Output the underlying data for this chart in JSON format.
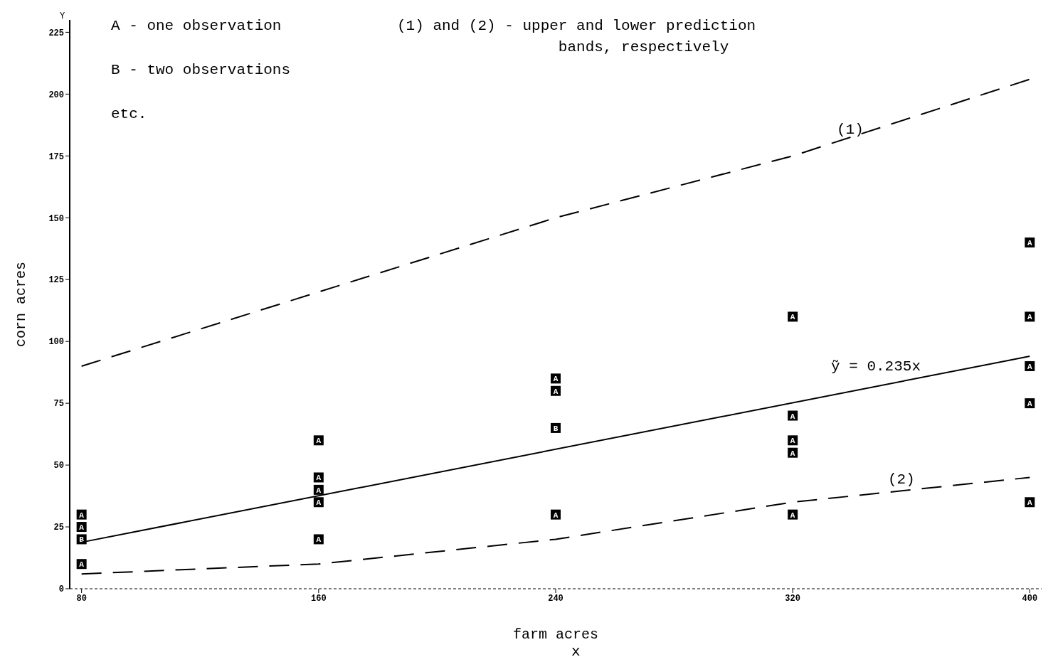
{
  "chart_data": {
    "type": "scatter",
    "xlabel": "farm acres",
    "ylabel": "corn acres",
    "xlim": [
      76,
      404
    ],
    "ylim": [
      0,
      230
    ],
    "xticks": [
      80,
      160,
      240,
      320,
      400
    ],
    "yticks": [
      0,
      25,
      50,
      75,
      100,
      125,
      150,
      175,
      200,
      225
    ],
    "series": [
      {
        "type": "scatter",
        "name": "A",
        "color": "#000000",
        "marker": "square",
        "x": [
          80,
          80,
          80,
          160,
          160,
          160,
          160,
          160,
          240,
          240,
          240,
          320,
          320,
          320,
          320,
          320,
          400,
          400,
          400,
          400,
          400
        ],
        "values": [
          30,
          25,
          10,
          60,
          45,
          40,
          35,
          20,
          85,
          80,
          30,
          110,
          70,
          60,
          55,
          30,
          140,
          110,
          90,
          75,
          35
        ]
      },
      {
        "type": "scatter",
        "name": "B",
        "color": "#000000",
        "marker": "square",
        "x": [
          80,
          240
        ],
        "values": [
          20,
          65
        ]
      },
      {
        "type": "line",
        "color": "#000000",
        "line_style": "solid",
        "x": [
          80,
          400
        ],
        "values": [
          18.8,
          94
        ]
      },
      {
        "type": "line",
        "color": "#000000",
        "line_style": "dashed",
        "x": [
          80,
          160,
          240,
          320,
          400
        ],
        "values": [
          90,
          120,
          150,
          175,
          206
        ]
      },
      {
        "type": "line",
        "color": "#000000",
        "line_style": "dashed",
        "x": [
          80,
          160,
          240,
          320,
          400
        ],
        "values": [
          6,
          10,
          20,
          35,
          45
        ]
      }
    ],
    "annotations": [
      "A - one observation",
      "B - two observations",
      "etc.",
      "(1) and (2) - upper and lower prediction\n                  bands, respectively",
      "Y",
      "x",
      "(1)",
      "(2)",
      "ỹ = 0.235x"
    ]
  }
}
